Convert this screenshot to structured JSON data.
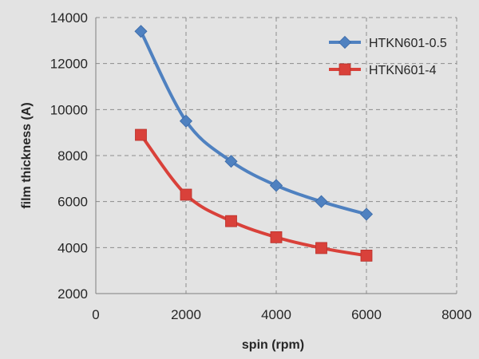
{
  "chart_data": {
    "type": "line",
    "xlabel": "spin (rpm)",
    "ylabel": "film thickness (A)",
    "xlim": [
      0,
      8000
    ],
    "ylim": [
      2000,
      14000
    ],
    "x_ticks": [
      0,
      2000,
      4000,
      6000,
      8000
    ],
    "y_ticks": [
      2000,
      4000,
      6000,
      8000,
      10000,
      12000,
      14000
    ],
    "x_tick_labels": [
      "0",
      "2000",
      "4000",
      "6000",
      "8000"
    ],
    "y_tick_labels": [
      "2000",
      "4000",
      "6000",
      "8000",
      "10000",
      "12000",
      "14000"
    ],
    "grid": true,
    "smooth": true,
    "legend_position": "top-right",
    "x": [
      1000,
      2000,
      3000,
      4000,
      5000,
      6000
    ],
    "series": [
      {
        "name": "HTKN601-0.5",
        "marker": "diamond",
        "color": "#4f81c0",
        "values": [
          13400,
          9500,
          7750,
          6700,
          6000,
          5450
        ]
      },
      {
        "name": "HTKN601-4",
        "marker": "square",
        "color": "#d9413a",
        "values": [
          8900,
          6300,
          5150,
          4450,
          3980,
          3650
        ]
      }
    ]
  }
}
